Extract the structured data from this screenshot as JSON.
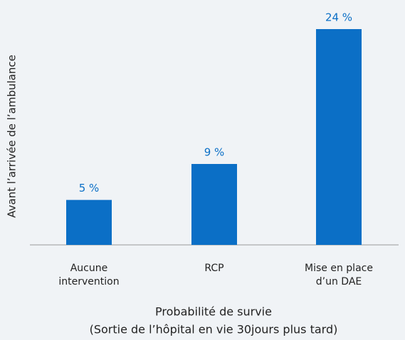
{
  "chart_data": {
    "type": "bar",
    "ylabel": "Avant l’arrivée de l’ambulance",
    "xlabel": [
      "Probabilité de survie",
      "(Sortie de l’hôpital en vie 30jours plus tard)"
    ],
    "categories": [
      [
        "Aucune",
        "intervention"
      ],
      [
        "RCP"
      ],
      [
        "Mise en place",
        "d’un DAE"
      ]
    ],
    "values": [
      5,
      9,
      24
    ],
    "value_labels": [
      "5 %",
      "9 %",
      "24 %"
    ],
    "color": "#0b6fc6",
    "ylim": [
      0,
      24
    ]
  }
}
